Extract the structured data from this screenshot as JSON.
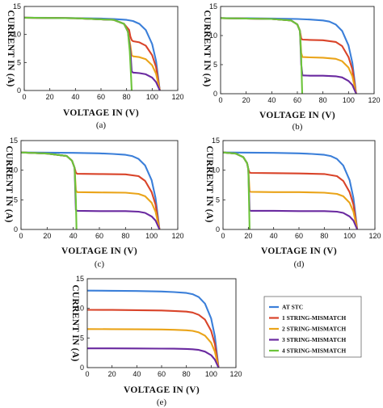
{
  "colors": {
    "stc": "#3b7fd9",
    "m1": "#d9442a",
    "m2": "#eaa419",
    "m3": "#6a2aa0",
    "m4": "#6cc43a"
  },
  "legend": [
    {
      "key": "stc",
      "label": "AT STC"
    },
    {
      "key": "m1",
      "label": "1 STRING-MISMATCH"
    },
    {
      "key": "m2",
      "label": "2 STRING-MISMATCH"
    },
    {
      "key": "m3",
      "label": "3 STRING-MISMATCH"
    },
    {
      "key": "m4",
      "label": "4 STRING-MISMATCH"
    }
  ],
  "chart_data": [
    {
      "type": "line",
      "caption": "(a)",
      "xlabel": "VOLTAGE IN (V)",
      "ylabel": "CURRENT IN (A)",
      "xlim": [
        0,
        120
      ],
      "ylim": [
        0,
        15
      ],
      "xticks": [
        0,
        20,
        40,
        60,
        80,
        100,
        120
      ],
      "yticks": [
        0,
        5,
        10,
        15
      ],
      "grid": false,
      "series": [
        {
          "key": "stc",
          "x": [
            0,
            20,
            40,
            60,
            70,
            80,
            85,
            90,
            95,
            100,
            103,
            106
          ],
          "y": [
            13.0,
            12.97,
            12.93,
            12.85,
            12.75,
            12.6,
            12.4,
            11.9,
            10.8,
            8.3,
            5.3,
            0
          ]
        },
        {
          "key": "m1",
          "x": [
            0,
            40,
            70,
            78,
            82,
            83,
            84,
            85,
            90,
            95,
            100,
            103,
            106
          ],
          "y": [
            13.0,
            12.9,
            12.6,
            11.9,
            10.8,
            9.6,
            9.0,
            8.8,
            8.6,
            8.0,
            6.3,
            4.2,
            0
          ]
        },
        {
          "key": "m2",
          "x": [
            0,
            40,
            70,
            78,
            81,
            83,
            84,
            85,
            90,
            95,
            100,
            103,
            106
          ],
          "y": [
            13.0,
            12.9,
            12.6,
            11.9,
            10.5,
            8.0,
            6.3,
            6.1,
            5.95,
            5.6,
            4.5,
            3.0,
            0
          ]
        },
        {
          "key": "m3",
          "x": [
            0,
            40,
            70,
            78,
            81,
            83,
            84,
            85,
            90,
            95,
            100,
            103,
            106
          ],
          "y": [
            13.0,
            12.9,
            12.6,
            11.9,
            10.5,
            7.0,
            3.4,
            3.2,
            3.1,
            2.9,
            2.3,
            1.5,
            0
          ]
        },
        {
          "key": "m4",
          "x": [
            0,
            40,
            70,
            78,
            81,
            82.5,
            83.5,
            84
          ],
          "y": [
            13.0,
            12.9,
            12.6,
            11.9,
            10.5,
            7.0,
            2.5,
            0
          ]
        }
      ]
    },
    {
      "type": "line",
      "caption": "(b)",
      "xlabel": "VOLTAGE IN (V)",
      "ylabel": "CURRENT IN (A)",
      "xlim": [
        0,
        120
      ],
      "ylim": [
        0,
        15
      ],
      "xticks": [
        0,
        20,
        40,
        60,
        80,
        100,
        120
      ],
      "yticks": [
        0,
        5,
        10,
        15
      ],
      "grid": false,
      "series": [
        {
          "key": "stc",
          "x": [
            0,
            20,
            40,
            60,
            70,
            80,
            85,
            90,
            95,
            100,
            103,
            106
          ],
          "y": [
            13.0,
            12.97,
            12.93,
            12.85,
            12.75,
            12.6,
            12.4,
            11.9,
            10.8,
            8.3,
            5.3,
            0
          ]
        },
        {
          "key": "m1",
          "x": [
            0,
            40,
            55,
            60,
            62,
            63,
            64,
            70,
            80,
            90,
            95,
            100,
            103,
            106
          ],
          "y": [
            13.0,
            12.85,
            12.6,
            11.9,
            10.8,
            9.5,
            9.3,
            9.25,
            9.2,
            8.9,
            8.2,
            6.3,
            4.2,
            0
          ]
        },
        {
          "key": "m2",
          "x": [
            0,
            40,
            55,
            60,
            62,
            63,
            64,
            70,
            80,
            90,
            95,
            100,
            103,
            106
          ],
          "y": [
            13.0,
            12.85,
            12.6,
            11.9,
            10.8,
            7.0,
            6.3,
            6.25,
            6.2,
            6.0,
            5.6,
            4.5,
            3.0,
            0
          ]
        },
        {
          "key": "m3",
          "x": [
            0,
            40,
            55,
            60,
            62,
            63,
            64,
            70,
            80,
            90,
            95,
            100,
            103,
            106
          ],
          "y": [
            13.0,
            12.85,
            12.6,
            11.9,
            10.8,
            5.0,
            3.15,
            3.1,
            3.1,
            3.0,
            2.8,
            2.2,
            1.5,
            0
          ]
        },
        {
          "key": "m4",
          "x": [
            0,
            40,
            55,
            60,
            62,
            63,
            63.8
          ],
          "y": [
            13.0,
            12.85,
            12.6,
            11.9,
            10.8,
            6.0,
            0
          ]
        }
      ]
    },
    {
      "type": "line",
      "caption": "(c)",
      "xlabel": "VOLTAGE IN (V)",
      "ylabel": "CURRENT IN (A)",
      "xlim": [
        0,
        120
      ],
      "ylim": [
        0,
        15
      ],
      "xticks": [
        0,
        20,
        40,
        60,
        80,
        100,
        120
      ],
      "yticks": [
        0,
        5,
        10,
        15
      ],
      "grid": false,
      "series": [
        {
          "key": "stc",
          "x": [
            0,
            20,
            40,
            60,
            70,
            80,
            85,
            90,
            95,
            100,
            103,
            106
          ],
          "y": [
            13.0,
            12.97,
            12.93,
            12.85,
            12.75,
            12.6,
            12.4,
            11.9,
            10.8,
            8.3,
            5.3,
            0
          ]
        },
        {
          "key": "m1",
          "x": [
            0,
            20,
            35,
            39,
            41,
            42,
            43,
            60,
            80,
            90,
            95,
            100,
            103,
            106
          ],
          "y": [
            13.0,
            12.8,
            12.4,
            11.6,
            10.4,
            9.6,
            9.4,
            9.35,
            9.3,
            9.0,
            8.2,
            6.3,
            4.2,
            0
          ]
        },
        {
          "key": "m2",
          "x": [
            0,
            20,
            35,
            39,
            41,
            42,
            43,
            60,
            80,
            90,
            95,
            100,
            103,
            106
          ],
          "y": [
            13.0,
            12.8,
            12.4,
            11.6,
            10.4,
            6.6,
            6.3,
            6.25,
            6.2,
            6.0,
            5.6,
            4.5,
            3.0,
            0
          ]
        },
        {
          "key": "m3",
          "x": [
            0,
            20,
            35,
            39,
            41,
            42,
            43,
            60,
            80,
            90,
            95,
            100,
            103,
            106
          ],
          "y": [
            13.0,
            12.8,
            12.4,
            11.6,
            10.4,
            3.3,
            3.15,
            3.1,
            3.1,
            3.0,
            2.8,
            2.2,
            1.5,
            0
          ]
        },
        {
          "key": "m4",
          "x": [
            0,
            20,
            35,
            39,
            41,
            42,
            42.5
          ],
          "y": [
            13.0,
            12.8,
            12.4,
            11.6,
            10.4,
            5.0,
            0
          ]
        }
      ]
    },
    {
      "type": "line",
      "caption": "(d)",
      "xlabel": "VOLTAGE IN (V)",
      "ylabel": "CURRENT IN (A)",
      "xlim": [
        0,
        120
      ],
      "ylim": [
        0,
        15
      ],
      "xticks": [
        0,
        20,
        40,
        60,
        80,
        100,
        120
      ],
      "yticks": [
        0,
        5,
        10,
        15
      ],
      "grid": false,
      "series": [
        {
          "key": "stc",
          "x": [
            0,
            20,
            40,
            60,
            70,
            80,
            85,
            90,
            95,
            100,
            103,
            106
          ],
          "y": [
            13.0,
            12.97,
            12.93,
            12.85,
            12.75,
            12.6,
            12.4,
            11.9,
            10.8,
            8.3,
            5.3,
            0
          ]
        },
        {
          "key": "m1",
          "x": [
            0,
            10,
            16,
            19,
            20,
            21,
            22,
            40,
            60,
            80,
            90,
            95,
            100,
            103,
            106
          ],
          "y": [
            13.0,
            12.8,
            12.2,
            11.2,
            10.2,
            9.6,
            9.55,
            9.5,
            9.45,
            9.35,
            9.0,
            8.2,
            6.3,
            4.2,
            0
          ]
        },
        {
          "key": "m2",
          "x": [
            0,
            10,
            16,
            19,
            20,
            21,
            22,
            40,
            60,
            80,
            90,
            95,
            100,
            103,
            106
          ],
          "y": [
            13.0,
            12.8,
            12.2,
            11.2,
            10.2,
            6.4,
            6.35,
            6.3,
            6.3,
            6.2,
            6.0,
            5.6,
            4.5,
            3.0,
            0
          ]
        },
        {
          "key": "m3",
          "x": [
            0,
            10,
            16,
            19,
            20,
            21,
            22,
            40,
            60,
            80,
            90,
            95,
            100,
            103,
            106
          ],
          "y": [
            13.0,
            12.8,
            12.2,
            11.2,
            10.2,
            3.2,
            3.15,
            3.15,
            3.1,
            3.1,
            3.0,
            2.8,
            2.2,
            1.5,
            0
          ]
        },
        {
          "key": "m4",
          "x": [
            0,
            10,
            16,
            19,
            20,
            20.6,
            21
          ],
          "y": [
            13.0,
            12.8,
            12.2,
            11.2,
            10.2,
            4.0,
            0
          ]
        }
      ]
    },
    {
      "type": "line",
      "caption": "(e)",
      "xlabel": "VOLTAGE IN (V)",
      "ylabel": "CURRENT IN (A)",
      "xlim": [
        0,
        120
      ],
      "ylim": [
        0,
        15
      ],
      "xticks": [
        0,
        20,
        40,
        60,
        80,
        100,
        120
      ],
      "yticks": [
        0,
        5,
        10,
        15
      ],
      "grid": false,
      "series": [
        {
          "key": "stc",
          "x": [
            0,
            20,
            40,
            60,
            70,
            80,
            85,
            90,
            95,
            100,
            103,
            106
          ],
          "y": [
            13.0,
            12.97,
            12.93,
            12.85,
            12.75,
            12.6,
            12.4,
            11.9,
            10.8,
            8.3,
            5.3,
            0
          ]
        },
        {
          "key": "m1",
          "x": [
            0,
            20,
            40,
            60,
            70,
            80,
            85,
            90,
            95,
            100,
            103,
            106
          ],
          "y": [
            9.75,
            9.73,
            9.7,
            9.64,
            9.56,
            9.45,
            9.3,
            8.9,
            8.1,
            6.2,
            4.0,
            0
          ]
        },
        {
          "key": "m2",
          "x": [
            0,
            20,
            40,
            60,
            70,
            80,
            85,
            90,
            95,
            100,
            103,
            106
          ],
          "y": [
            6.5,
            6.49,
            6.47,
            6.43,
            6.38,
            6.3,
            6.2,
            5.95,
            5.4,
            4.2,
            2.7,
            0
          ]
        },
        {
          "key": "m3",
          "x": [
            0,
            20,
            40,
            60,
            70,
            80,
            85,
            90,
            95,
            100,
            103,
            106
          ],
          "y": [
            3.25,
            3.24,
            3.23,
            3.21,
            3.19,
            3.15,
            3.1,
            2.98,
            2.7,
            2.1,
            1.35,
            0
          ]
        }
      ]
    }
  ]
}
